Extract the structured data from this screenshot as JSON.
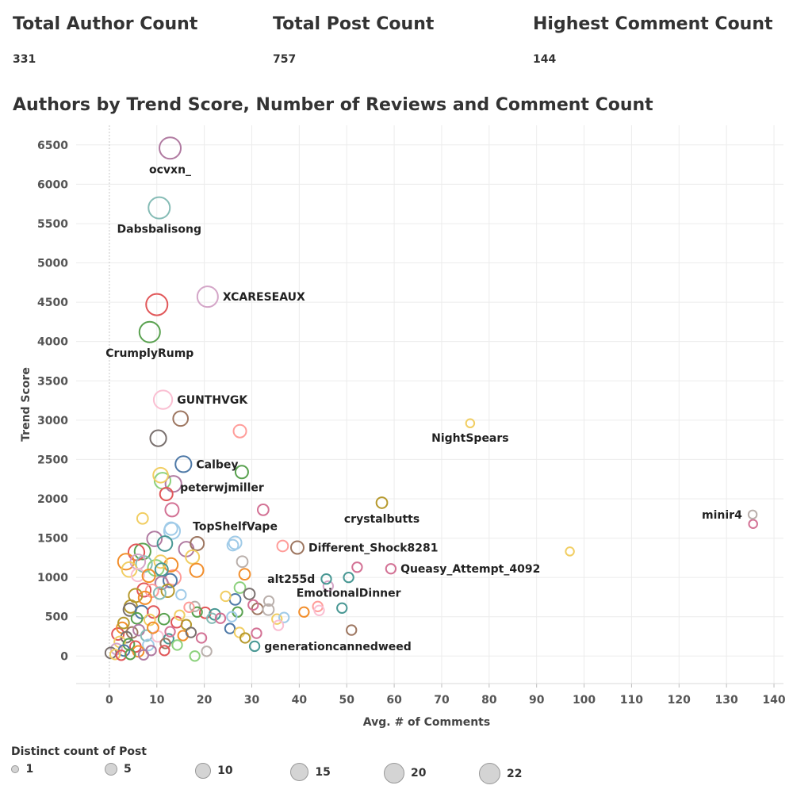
{
  "kpis": {
    "author": {
      "title": "Total Author Count",
      "value": "331"
    },
    "post": {
      "title": "Total Post Count",
      "value": "757"
    },
    "comment": {
      "title": "Highest Comment Count",
      "value": "144"
    }
  },
  "chart_title": "Authors by Trend Score, Number of Reviews and Comment Count",
  "legend": {
    "title": "Distinct count of Post",
    "items": [
      {
        "label": "1",
        "size": 1
      },
      {
        "label": "5",
        "size": 5
      },
      {
        "label": "10",
        "size": 10
      },
      {
        "label": "15",
        "size": 15
      },
      {
        "label": "20",
        "size": 20
      },
      {
        "label": "22",
        "size": 22
      }
    ]
  },
  "chart_data": {
    "type": "scatter",
    "xlabel": "Avg. # of Comments",
    "ylabel": "Trend Score",
    "xlim": [
      -7,
      142
    ],
    "ylim": [
      -350,
      6750
    ],
    "xticks": [
      0,
      10,
      20,
      30,
      40,
      50,
      60,
      70,
      80,
      90,
      100,
      110,
      120,
      130,
      140
    ],
    "yticks": [
      0,
      500,
      1000,
      1500,
      2000,
      2500,
      3000,
      3500,
      4000,
      4500,
      5000,
      5500,
      6000,
      6500
    ],
    "grid": true,
    "encoding": {
      "size": "Distinct count of Post",
      "color": "Author"
    },
    "labeled_points": [
      {
        "label": "ocvxn_",
        "x": 12.8,
        "y": 6460,
        "size": 22,
        "color": "#b07aa1",
        "label_pos": "below"
      },
      {
        "label": "Dabsbalisong",
        "x": 10.5,
        "y": 5700,
        "size": 22,
        "color": "#86bcb6",
        "label_pos": "below"
      },
      {
        "label": "XCARESEAUX",
        "x": 20.7,
        "y": 4570,
        "size": 20,
        "color": "#d4a6c8",
        "label_pos": "right"
      },
      {
        "label": "CrumplyRump",
        "x": 8.5,
        "y": 4120,
        "size": 20,
        "color": "#59a14f",
        "label_pos": "below"
      },
      {
        "label": "GUNTHVGK",
        "x": 11.3,
        "y": 3260,
        "size": 15,
        "color": "#fabfd2",
        "label_pos": "right"
      },
      {
        "label": "NightSpears",
        "x": 76,
        "y": 2960,
        "size": 1,
        "color": "#f1ce63",
        "label_pos": "below"
      },
      {
        "label": "Calbey",
        "x": 15.6,
        "y": 2440,
        "size": 10,
        "color": "#4e79a7",
        "label_pos": "right"
      },
      {
        "label": "peterwjmiller",
        "x": 27.9,
        "y": 2340,
        "size": 5,
        "color": "#59a14f",
        "label_pos": "below-left"
      },
      {
        "label": "crystalbutts",
        "x": 57.4,
        "y": 1950,
        "size": 3,
        "color": "#b6992d",
        "label_pos": "below"
      },
      {
        "label": "minir4",
        "x": 135.5,
        "y": 1800,
        "size": 1,
        "color": "#bab0ac",
        "label_pos": "left"
      },
      {
        "label": "TopShelfVape",
        "x": 26.5,
        "y": 1440,
        "size": 5,
        "color": "#a0cbe8",
        "label_pos": "above"
      },
      {
        "label": "Different_Shock8281",
        "x": 39.6,
        "y": 1380,
        "size": 5,
        "color": "#9d7660",
        "label_pos": "right"
      },
      {
        "label": "Queasy_Attempt_4092",
        "x": 59.3,
        "y": 1110,
        "size": 2,
        "color": "#d37295",
        "label_pos": "right"
      },
      {
        "label": "alt255d",
        "x": 45.7,
        "y": 980,
        "size": 2,
        "color": "#499894",
        "label_pos": "left"
      },
      {
        "label": "EmotionalDinner",
        "x": 50.4,
        "y": 1000,
        "size": 2,
        "color": "#499894",
        "label_pos": "below"
      },
      {
        "label": "generationcannedweed",
        "x": 30.6,
        "y": 125,
        "size": 2,
        "color": "#499894",
        "label_pos": "right"
      }
    ],
    "points": [
      {
        "x": 10,
        "y": 4470,
        "size": 22,
        "color": "#e15759"
      },
      {
        "x": 15,
        "y": 3020,
        "size": 8,
        "color": "#9d7660"
      },
      {
        "x": 10.3,
        "y": 2770,
        "size": 10,
        "color": "#79706e"
      },
      {
        "x": 27.5,
        "y": 2860,
        "size": 5,
        "color": "#ff9d9a"
      },
      {
        "x": 10.8,
        "y": 2300,
        "size": 8,
        "color": "#f1ce63"
      },
      {
        "x": 11.2,
        "y": 2230,
        "size": 10,
        "color": "#8cd17d"
      },
      {
        "x": 13.5,
        "y": 2190,
        "size": 10,
        "color": "#b07aa1"
      },
      {
        "x": 12,
        "y": 2060,
        "size": 5,
        "color": "#e15759"
      },
      {
        "x": 13.2,
        "y": 1860,
        "size": 6,
        "color": "#d37295"
      },
      {
        "x": 7,
        "y": 1750,
        "size": 3,
        "color": "#f1ce63"
      },
      {
        "x": 32.4,
        "y": 1860,
        "size": 3,
        "color": "#d37295"
      },
      {
        "x": 13,
        "y": 1620,
        "size": 5,
        "color": "#a0cbe8"
      },
      {
        "x": 13.2,
        "y": 1590,
        "size": 10,
        "color": "#a0cbe8"
      },
      {
        "x": 9.5,
        "y": 1490,
        "size": 8,
        "color": "#b07aa1"
      },
      {
        "x": 11.7,
        "y": 1430,
        "size": 8,
        "color": "#499894"
      },
      {
        "x": 18.5,
        "y": 1430,
        "size": 6,
        "color": "#9d7660"
      },
      {
        "x": 16.2,
        "y": 1360,
        "size": 8,
        "color": "#b07aa1"
      },
      {
        "x": 7,
        "y": 1330,
        "size": 10,
        "color": "#59a14f"
      },
      {
        "x": 5.7,
        "y": 1320,
        "size": 10,
        "color": "#e15759"
      },
      {
        "x": 17.5,
        "y": 1260,
        "size": 6,
        "color": "#f1ce63"
      },
      {
        "x": 26,
        "y": 1410,
        "size": 3,
        "color": "#a0cbe8"
      },
      {
        "x": 36.5,
        "y": 1400,
        "size": 3,
        "color": "#ff9d9a"
      },
      {
        "x": 3.5,
        "y": 1200,
        "size": 10,
        "color": "#f28e2b"
      },
      {
        "x": 6,
        "y": 1200,
        "size": 8,
        "color": "#d4a6c8"
      },
      {
        "x": 7.3,
        "y": 1170,
        "size": 10,
        "color": "#86bcb6"
      },
      {
        "x": 10.8,
        "y": 1200,
        "size": 5,
        "color": "#f1ce63"
      },
      {
        "x": 13,
        "y": 1160,
        "size": 6,
        "color": "#f28e2b"
      },
      {
        "x": 9.8,
        "y": 1120,
        "size": 10,
        "color": "#8cd17d"
      },
      {
        "x": 11,
        "y": 1100,
        "size": 5,
        "color": "#499894"
      },
      {
        "x": 4.2,
        "y": 1100,
        "size": 8,
        "color": "#f1ce63"
      },
      {
        "x": 18.4,
        "y": 1090,
        "size": 6,
        "color": "#f28e2b"
      },
      {
        "x": 6,
        "y": 1030,
        "size": 5,
        "color": "#fabfd2"
      },
      {
        "x": 8.3,
        "y": 1020,
        "size": 5,
        "color": "#f28e2b"
      },
      {
        "x": 13.5,
        "y": 1000,
        "size": 8,
        "color": "#ff9d9a"
      },
      {
        "x": 12.8,
        "y": 960,
        "size": 6,
        "color": "#4e79a7"
      },
      {
        "x": 11,
        "y": 930,
        "size": 5,
        "color": "#b07aa1"
      },
      {
        "x": 7.3,
        "y": 840,
        "size": 6,
        "color": "#e15759"
      },
      {
        "x": 9,
        "y": 830,
        "size": 5,
        "color": "#ff9d9a"
      },
      {
        "x": 12.3,
        "y": 830,
        "size": 5,
        "color": "#b6992d"
      },
      {
        "x": 10.6,
        "y": 800,
        "size": 4,
        "color": "#86bcb6"
      },
      {
        "x": 5.5,
        "y": 770,
        "size": 6,
        "color": "#b6992d"
      },
      {
        "x": 7.5,
        "y": 740,
        "size": 5,
        "color": "#f28e2b"
      },
      {
        "x": 4.5,
        "y": 630,
        "size": 5,
        "color": "#b6992d"
      },
      {
        "x": 4.3,
        "y": 590,
        "size": 5,
        "color": "#79706e"
      },
      {
        "x": 6.8,
        "y": 560,
        "size": 5,
        "color": "#4e79a7"
      },
      {
        "x": 9.3,
        "y": 560,
        "size": 4,
        "color": "#e15759"
      },
      {
        "x": 5.8,
        "y": 480,
        "size": 3,
        "color": "#59a14f"
      },
      {
        "x": 8.5,
        "y": 460,
        "size": 3,
        "color": "#f1ce63"
      },
      {
        "x": 11.5,
        "y": 470,
        "size": 3,
        "color": "#59a14f"
      },
      {
        "x": 14.2,
        "y": 430,
        "size": 3,
        "color": "#e15759"
      },
      {
        "x": 16.2,
        "y": 400,
        "size": 2,
        "color": "#b6992d"
      },
      {
        "x": 2.7,
        "y": 360,
        "size": 3,
        "color": "#f28e2b"
      },
      {
        "x": 4.8,
        "y": 300,
        "size": 3,
        "color": "#9d7660"
      },
      {
        "x": 6.2,
        "y": 330,
        "size": 3,
        "color": "#b07aa1"
      },
      {
        "x": 1.8,
        "y": 280,
        "size": 4,
        "color": "#e15759"
      },
      {
        "x": 3.6,
        "y": 240,
        "size": 3,
        "color": "#79706e"
      },
      {
        "x": 7.8,
        "y": 260,
        "size": 3,
        "color": "#86bcb6"
      },
      {
        "x": 10.2,
        "y": 250,
        "size": 3,
        "color": "#fabfd2"
      },
      {
        "x": 12.5,
        "y": 220,
        "size": 2,
        "color": "#499894"
      },
      {
        "x": 15.5,
        "y": 260,
        "size": 2,
        "color": "#f28e2b"
      },
      {
        "x": 17.2,
        "y": 300,
        "size": 2,
        "color": "#79706e"
      },
      {
        "x": 19.4,
        "y": 230,
        "size": 2,
        "color": "#d37295"
      },
      {
        "x": 2.2,
        "y": 180,
        "size": 3,
        "color": "#f1ce63"
      },
      {
        "x": 4.1,
        "y": 150,
        "size": 3,
        "color": "#59a14f"
      },
      {
        "x": 5.5,
        "y": 120,
        "size": 3,
        "color": "#e15759"
      },
      {
        "x": 8.2,
        "y": 140,
        "size": 3,
        "color": "#a0cbe8"
      },
      {
        "x": 11.8,
        "y": 160,
        "size": 2,
        "color": "#9d7660"
      },
      {
        "x": 14.3,
        "y": 140,
        "size": 2,
        "color": "#8cd17d"
      },
      {
        "x": 1.5,
        "y": 90,
        "size": 3,
        "color": "#d4a6c8"
      },
      {
        "x": 3.1,
        "y": 70,
        "size": 3,
        "color": "#4e79a7"
      },
      {
        "x": 6.1,
        "y": 60,
        "size": 3,
        "color": "#f28e2b"
      },
      {
        "x": 8.8,
        "y": 70,
        "size": 2,
        "color": "#b07aa1"
      },
      {
        "x": 11.6,
        "y": 70,
        "size": 2,
        "color": "#e15759"
      },
      {
        "x": 0.3,
        "y": 40,
        "size": 3,
        "color": "#79706e"
      },
      {
        "x": 1.2,
        "y": 20,
        "size": 2,
        "color": "#f1ce63"
      },
      {
        "x": 2.5,
        "y": 10,
        "size": 2,
        "color": "#e15759"
      },
      {
        "x": 4.4,
        "y": 20,
        "size": 2,
        "color": "#59a14f"
      },
      {
        "x": 7.2,
        "y": 15,
        "size": 2,
        "color": "#b07aa1"
      },
      {
        "x": 18,
        "y": 630,
        "size": 2,
        "color": "#bab0ac"
      },
      {
        "x": 18.5,
        "y": 560,
        "size": 2,
        "color": "#59a14f"
      },
      {
        "x": 20.2,
        "y": 550,
        "size": 3,
        "color": "#e15759"
      },
      {
        "x": 22.2,
        "y": 530,
        "size": 3,
        "color": "#499894"
      },
      {
        "x": 24.5,
        "y": 760,
        "size": 2,
        "color": "#f1ce63"
      },
      {
        "x": 26.5,
        "y": 720,
        "size": 3,
        "color": "#4e79a7"
      },
      {
        "x": 27.5,
        "y": 870,
        "size": 3,
        "color": "#8cd17d"
      },
      {
        "x": 28.5,
        "y": 1040,
        "size": 3,
        "color": "#f28e2b"
      },
      {
        "x": 28,
        "y": 1200,
        "size": 3,
        "color": "#bab0ac"
      },
      {
        "x": 29.5,
        "y": 790,
        "size": 3,
        "color": "#79706e"
      },
      {
        "x": 30.3,
        "y": 650,
        "size": 2,
        "color": "#d37295"
      },
      {
        "x": 31.2,
        "y": 600,
        "size": 3,
        "color": "#9d7660"
      },
      {
        "x": 27,
        "y": 560,
        "size": 2,
        "color": "#59a14f"
      },
      {
        "x": 25.8,
        "y": 500,
        "size": 2,
        "color": "#a0cbe8"
      },
      {
        "x": 25.4,
        "y": 350,
        "size": 2,
        "color": "#4e79a7"
      },
      {
        "x": 27.4,
        "y": 300,
        "size": 2,
        "color": "#f1ce63"
      },
      {
        "x": 28.6,
        "y": 230,
        "size": 2,
        "color": "#b6992d"
      },
      {
        "x": 31,
        "y": 290,
        "size": 2,
        "color": "#d37295"
      },
      {
        "x": 33.6,
        "y": 700,
        "size": 2,
        "color": "#bab0ac"
      },
      {
        "x": 33.5,
        "y": 590,
        "size": 3,
        "color": "#bab0ac"
      },
      {
        "x": 35.3,
        "y": 470,
        "size": 2,
        "color": "#f1ce63"
      },
      {
        "x": 36.8,
        "y": 490,
        "size": 2,
        "color": "#a0cbe8"
      },
      {
        "x": 35.6,
        "y": 390,
        "size": 2,
        "color": "#fabfd2"
      },
      {
        "x": 41,
        "y": 560,
        "size": 2,
        "color": "#f28e2b"
      },
      {
        "x": 43.9,
        "y": 630,
        "size": 2,
        "color": "#ff9d9a"
      },
      {
        "x": 44.2,
        "y": 580,
        "size": 2,
        "color": "#fabfd2"
      },
      {
        "x": 46.1,
        "y": 890,
        "size": 2,
        "color": "#d4a6c8"
      },
      {
        "x": 49,
        "y": 610,
        "size": 2,
        "color": "#499894"
      },
      {
        "x": 51,
        "y": 330,
        "size": 2,
        "color": "#9d7660"
      },
      {
        "x": 52.2,
        "y": 1130,
        "size": 2,
        "color": "#d37295"
      },
      {
        "x": 97,
        "y": 1330,
        "size": 1,
        "color": "#f1ce63"
      },
      {
        "x": 135.6,
        "y": 1680,
        "size": 1,
        "color": "#d37295"
      },
      {
        "x": 20.5,
        "y": 60,
        "size": 2,
        "color": "#bab0ac"
      },
      {
        "x": 18,
        "y": 0,
        "size": 2,
        "color": "#8cd17d"
      },
      {
        "x": 9.2,
        "y": 360,
        "size": 3,
        "color": "#f28e2b"
      },
      {
        "x": 3,
        "y": 420,
        "size": 3,
        "color": "#b6992d"
      },
      {
        "x": 12.8,
        "y": 310,
        "size": 2,
        "color": "#d37295"
      },
      {
        "x": 14.8,
        "y": 520,
        "size": 2,
        "color": "#f1ce63"
      },
      {
        "x": 16.8,
        "y": 620,
        "size": 2,
        "color": "#ff9d9a"
      },
      {
        "x": 15.1,
        "y": 780,
        "size": 2,
        "color": "#a0cbe8"
      },
      {
        "x": 21.6,
        "y": 480,
        "size": 2,
        "color": "#86bcb6"
      },
      {
        "x": 23.4,
        "y": 480,
        "size": 2,
        "color": "#d37295"
      }
    ]
  }
}
